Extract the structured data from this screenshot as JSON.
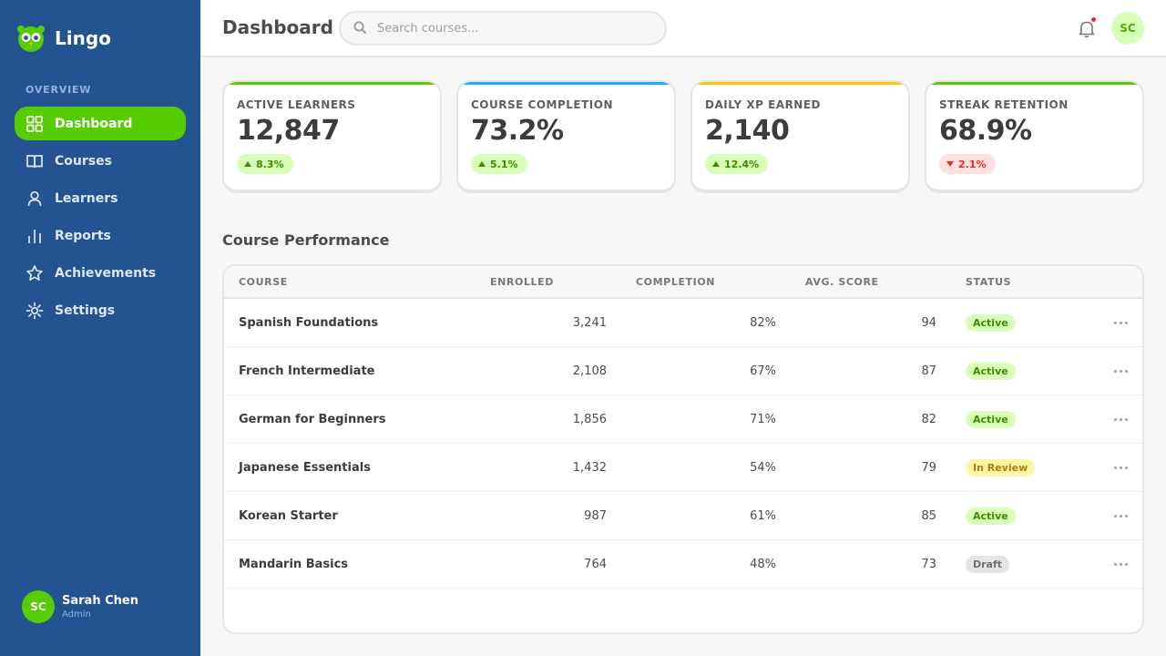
{
  "app": {
    "name": "Lingo"
  },
  "sidebar": {
    "section_label": "OVERVIEW",
    "items": [
      {
        "label": "Dashboard",
        "icon": "grid-icon",
        "active": true
      },
      {
        "label": "Courses",
        "icon": "book-icon"
      },
      {
        "label": "Learners",
        "icon": "person-icon"
      },
      {
        "label": "Reports",
        "icon": "bar-chart-icon"
      },
      {
        "label": "Achievements",
        "icon": "star-icon"
      },
      {
        "label": "Settings",
        "icon": "gear-icon"
      }
    ],
    "user": {
      "initials": "SC",
      "name": "Sarah Chen",
      "role": "Admin"
    }
  },
  "header": {
    "title": "Dashboard",
    "search_placeholder": "Search courses...",
    "avatar_initials": "SC"
  },
  "stats": [
    {
      "label": "ACTIVE LEARNERS",
      "value": "12,847",
      "delta": "8.3%",
      "direction": "up",
      "accent": "#58cc02"
    },
    {
      "label": "COURSE COMPLETION",
      "value": "73.2%",
      "delta": "5.1%",
      "direction": "up",
      "accent": "#1cb0f6"
    },
    {
      "label": "DAILY XP EARNED",
      "value": "2,140",
      "delta": "12.4%",
      "direction": "up",
      "accent": "#ffc800"
    },
    {
      "label": "STREAK RETENTION",
      "value": "68.9%",
      "delta": "2.1%",
      "direction": "down",
      "accent": "#58cc02"
    }
  ],
  "table": {
    "title": "Course Performance",
    "headers": {
      "course": "COURSE",
      "enrolled": "ENROLLED",
      "completion": "COMPLETION",
      "score": "AVG. SCORE",
      "status": "STATUS"
    },
    "rows": [
      {
        "course": "Spanish Foundations",
        "enrolled": "3,241",
        "completion": "82%",
        "score": "94",
        "status": "Active"
      },
      {
        "course": "French Intermediate",
        "enrolled": "2,108",
        "completion": "67%",
        "score": "87",
        "status": "Active"
      },
      {
        "course": "German for Beginners",
        "enrolled": "1,856",
        "completion": "71%",
        "score": "82",
        "status": "Active"
      },
      {
        "course": "Japanese Essentials",
        "enrolled": "1,432",
        "completion": "54%",
        "score": "79",
        "status": "In Review"
      },
      {
        "course": "Korean Starter",
        "enrolled": "987",
        "completion": "61%",
        "score": "85",
        "status": "Active"
      },
      {
        "course": "Mandarin Basics",
        "enrolled": "764",
        "completion": "48%",
        "score": "73",
        "status": "Draft"
      }
    ]
  },
  "colors": {
    "sidebar_bg": "#235390",
    "brand_green": "#58cc02",
    "blue": "#1cb0f6",
    "yellow": "#ffc800",
    "red": "#ea2b2b"
  }
}
